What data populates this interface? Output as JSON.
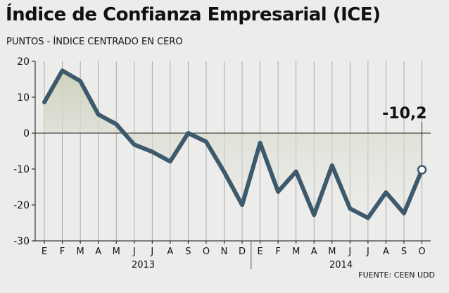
{
  "title": "Índice de Confianza Empresarial (ICE)",
  "subtitle": "PUNTOS - ÍNDICE CENTRADO EN CERO",
  "source": "FUENTE: CEEN UDD",
  "chart_data": {
    "type": "area",
    "title": "Índice de Confianza Empresarial (ICE)",
    "subtitle": "PUNTOS - ÍNDICE CENTRADO EN CERO",
    "categories": [
      "E",
      "F",
      "M",
      "A",
      "M",
      "J",
      "J",
      "A",
      "S",
      "O",
      "N",
      "D",
      "E",
      "F",
      "M",
      "A",
      "M",
      "J",
      "J",
      "A",
      "S",
      "O"
    ],
    "years": [
      {
        "label": "2013",
        "start": 0,
        "end": 11
      },
      {
        "label": "2014",
        "start": 12,
        "end": 21
      }
    ],
    "series": [
      {
        "values": [
          8.6,
          17.4,
          14.5,
          5.2,
          2.5,
          -3.2,
          -5.2,
          -7.9,
          0.0,
          -2.4,
          -10.8,
          -20.0,
          -2.7,
          -16.3,
          -10.7,
          -22.8,
          -9.0,
          -21.0,
          -23.6,
          -16.5,
          -22.3,
          -10.2
        ]
      }
    ],
    "ylim": [
      -30,
      20
    ],
    "yticks": [
      20,
      10,
      0,
      -10,
      -20,
      -30
    ],
    "ytick_labels": [
      "20",
      "10",
      "0",
      "-10",
      "-20",
      "-30"
    ],
    "annotation": {
      "index": 21,
      "label": "-10,2"
    },
    "grid": "vertical",
    "colors": {
      "line": "#3d5a6c",
      "fill_top": "#d4d6c3",
      "background": "#ececeb",
      "grid": "#9a9a9a"
    }
  }
}
